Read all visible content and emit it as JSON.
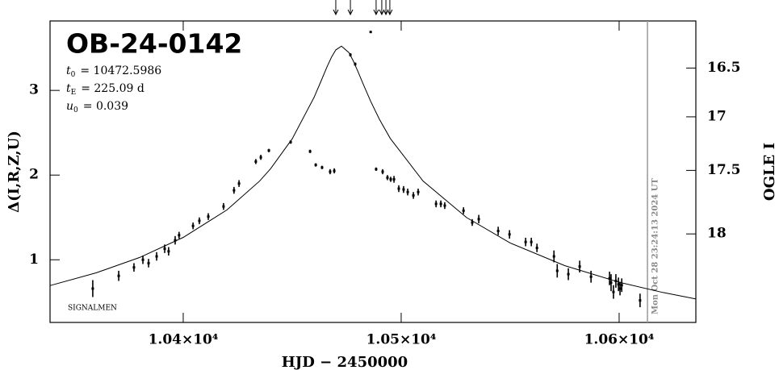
{
  "chart_data": {
    "type": "scatter",
    "title": "OB-24-0142",
    "params": [
      {
        "symbol": "t",
        "sub": "0",
        "text": "= 10472.5986"
      },
      {
        "symbol": "t",
        "sub": "E",
        "text": "= 225.09 d"
      },
      {
        "symbol": "u",
        "sub": "0",
        "text": "= 0.039"
      }
    ],
    "note": "SIGNALMEN",
    "x_label": "HJD − 2450000",
    "y_label": "Δ(I,R,Z,U)",
    "y2_label": "OGLE I",
    "xlim": [
      10338.9,
      10635.2
    ],
    "ylim": [
      0.26,
      3.82
    ],
    "y2lim": [
      18.49,
      15.99
    ],
    "xticks": [
      {
        "value": 10400,
        "label": "1.04×10⁴"
      },
      {
        "value": 10500,
        "label": "1.05×10⁴"
      },
      {
        "value": 10600,
        "label": "1.06×10⁴"
      }
    ],
    "yticks": [
      1,
      2,
      3
    ],
    "y2ticks": [
      16.5,
      17,
      17.5,
      18
    ],
    "x": [
      10358.5,
      10370.4,
      10377.4,
      10381.5,
      10384.1,
      10387.8,
      10391.5,
      10393.3,
      10396.3,
      10398.1,
      10404.5,
      10407.4,
      10411.5,
      10418.5,
      10423.3,
      10425.6,
      10433.3,
      10435.6,
      10439.3,
      10449.3,
      10458.2,
      10460.8,
      10463.7,
      10467.4,
      10469.3,
      10476.7,
      10478.9,
      10486.0,
      10488.5,
      10491.5,
      10493.7,
      10495.2,
      10496.7,
      10498.9,
      10501.1,
      10503.0,
      10505.6,
      10507.8,
      10516.0,
      10518.2,
      10520.0,
      10528.6,
      10532.6,
      10535.6,
      10544.5,
      10549.7,
      10557.1,
      10559.7,
      10562.3,
      10570.1,
      10571.6,
      10576.7,
      10581.9,
      10587.1,
      10595.6,
      10596.3,
      10597.4,
      10598.5,
      10599.7,
      10600.4,
      10601.2,
      10609.6
    ],
    "values": [
      0.66,
      0.81,
      0.91,
      1.0,
      0.96,
      1.04,
      1.13,
      1.1,
      1.23,
      1.29,
      1.4,
      1.46,
      1.51,
      1.63,
      1.82,
      1.9,
      2.16,
      2.21,
      2.29,
      2.39,
      2.28,
      2.12,
      2.09,
      2.04,
      2.05,
      3.42,
      3.31,
      3.69,
      2.07,
      2.04,
      1.97,
      1.95,
      1.95,
      1.84,
      1.83,
      1.8,
      1.76,
      1.8,
      1.66,
      1.66,
      1.64,
      1.58,
      1.44,
      1.48,
      1.34,
      1.3,
      1.21,
      1.21,
      1.14,
      1.04,
      0.87,
      0.83,
      0.92,
      0.8,
      0.78,
      0.73,
      0.62,
      0.75,
      0.71,
      0.66,
      0.7,
      0.52
    ],
    "errors": [
      0.1,
      0.06,
      0.05,
      0.05,
      0.05,
      0.05,
      0.05,
      0.05,
      0.05,
      0.04,
      0.04,
      0.04,
      0.04,
      0.04,
      0.04,
      0.04,
      0.03,
      0.03,
      0.02,
      0.02,
      0.02,
      0.02,
      0.02,
      0.03,
      0.03,
      0.02,
      0.02,
      0.01,
      0.02,
      0.03,
      0.03,
      0.03,
      0.04,
      0.04,
      0.04,
      0.04,
      0.04,
      0.04,
      0.04,
      0.04,
      0.04,
      0.04,
      0.04,
      0.05,
      0.05,
      0.05,
      0.05,
      0.05,
      0.05,
      0.07,
      0.08,
      0.07,
      0.07,
      0.07,
      0.08,
      0.1,
      0.08,
      0.08,
      0.08,
      0.08,
      0.08,
      0.08
    ],
    "model": {
      "x": [
        10339,
        10360,
        10380,
        10400,
        10420,
        10435,
        10440,
        10450,
        10460,
        10463,
        10466,
        10468,
        10470,
        10472.6,
        10476,
        10478,
        10480,
        10483,
        10486,
        10490,
        10495,
        10510,
        10530,
        10550,
        10575,
        10600,
        10620,
        10635
      ],
      "values": [
        0.696,
        0.845,
        1.027,
        1.264,
        1.588,
        1.929,
        2.072,
        2.428,
        2.917,
        3.097,
        3.28,
        3.392,
        3.478,
        3.523,
        3.447,
        3.349,
        3.232,
        3.048,
        2.871,
        2.659,
        2.432,
        1.931,
        1.498,
        1.199,
        0.931,
        0.735,
        0.614,
        0.538
      ]
    },
    "arrows_x": [
      10470.0,
      10476.7,
      10488.5,
      10491.1,
      10493.0,
      10494.8
    ],
    "date_line": {
      "x": 10613.0,
      "label": "Mon Oct 28 23:24:13 2024 UT"
    }
  }
}
